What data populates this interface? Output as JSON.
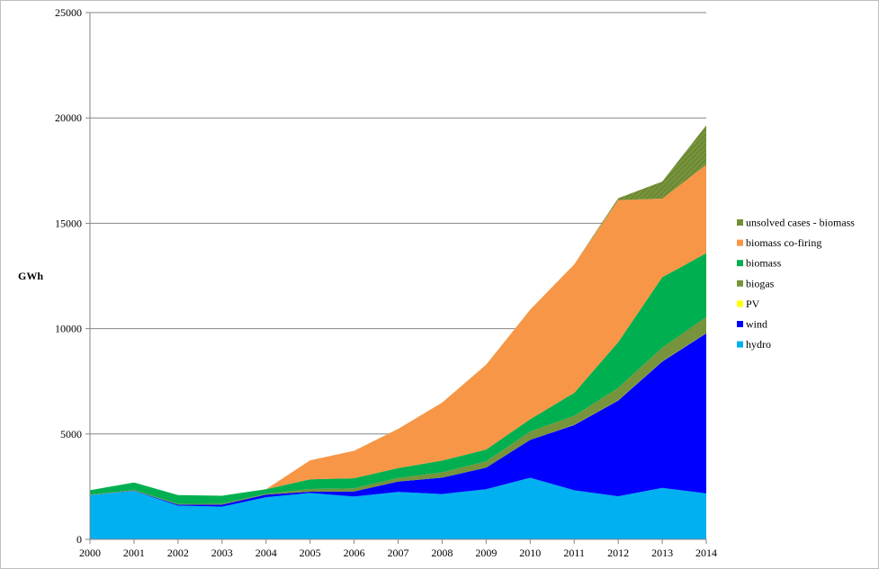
{
  "chart_data": {
    "type": "area",
    "stacked": true,
    "title": "",
    "xlabel": "",
    "ylabel": "GWh",
    "x": [
      "2000",
      "2001",
      "2002",
      "2003",
      "2004",
      "2005",
      "2006",
      "2007",
      "2008",
      "2009",
      "2010",
      "2011",
      "2012",
      "2013",
      "2014"
    ],
    "ylim": [
      0,
      25000
    ],
    "yticks": [
      "0",
      "5000",
      "10000",
      "15000",
      "20000",
      "25000"
    ],
    "grid": "horizontal",
    "legend_position": "right",
    "series": [
      {
        "name": "hydro",
        "color": "#00B0F0",
        "values": [
          2100,
          2300,
          1600,
          1550,
          2000,
          2200,
          2030,
          2250,
          2150,
          2380,
          2920,
          2330,
          2040,
          2440,
          2180
        ]
      },
      {
        "name": "wind",
        "color": "#0000FF",
        "values": [
          0,
          10,
          50,
          100,
          120,
          60,
          240,
          490,
          780,
          1020,
          1800,
          3100,
          4550,
          6000,
          7600
        ]
      },
      {
        "name": "PV",
        "color": "#FFFF00",
        "values": [
          0,
          0,
          0,
          0,
          0,
          0,
          0,
          0,
          0,
          0,
          0,
          10,
          10,
          10,
          10
        ]
      },
      {
        "name": "biogas",
        "color": "#77933C",
        "values": [
          20,
          30,
          30,
          40,
          40,
          130,
          150,
          170,
          250,
          300,
          400,
          420,
          590,
          650,
          760
        ]
      },
      {
        "name": "biomass",
        "color": "#00B050",
        "values": [
          210,
          360,
          420,
          380,
          220,
          460,
          480,
          470,
          560,
          560,
          580,
          1090,
          2170,
          3340,
          3030
        ]
      },
      {
        "name": "biomass co-firing",
        "color": "#F79646",
        "values": [
          0,
          0,
          0,
          0,
          0,
          900,
          1300,
          1860,
          2750,
          4030,
          5200,
          6100,
          6740,
          3730,
          4200
        ]
      },
      {
        "name": "unsolved cases - biomass",
        "color": "#77933C",
        "values": [
          0,
          0,
          0,
          0,
          0,
          0,
          0,
          0,
          0,
          0,
          0,
          0,
          90,
          810,
          1870
        ]
      }
    ]
  }
}
